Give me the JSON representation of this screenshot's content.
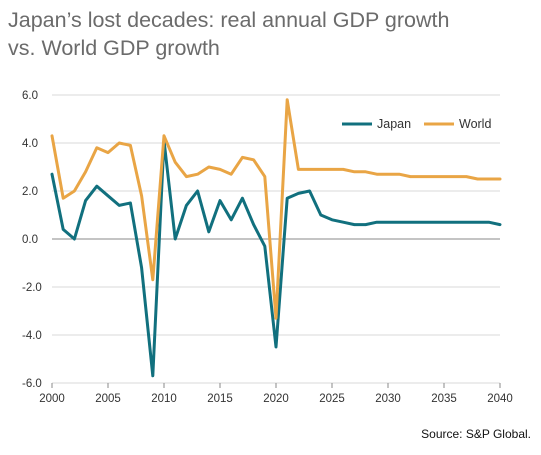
{
  "title_lines": [
    "Japan’s lost decades: real annual GDP growth",
    "vs. World GDP growth"
  ],
  "source": "Source: S&P Global.",
  "chart_data": {
    "type": "line",
    "title": "Japan’s lost decades: real annual GDP growth vs. World GDP growth",
    "xlabel": "",
    "ylabel": "",
    "xlim": [
      2000,
      2040
    ],
    "ylim": [
      -6,
      6
    ],
    "x_ticks": [
      2000,
      2005,
      2010,
      2015,
      2020,
      2025,
      2030,
      2035,
      2040
    ],
    "y_ticks": [
      "6.0",
      "4.0",
      "2.0",
      "0.0",
      "-2.0",
      "-4.0",
      "-6.0"
    ],
    "y_tick_values": [
      6,
      4,
      2,
      0,
      -2,
      -4,
      -6
    ],
    "grid": "horizontal",
    "legend_placement": "top-right",
    "x": [
      2000,
      2001,
      2002,
      2003,
      2004,
      2005,
      2006,
      2007,
      2008,
      2009,
      2010,
      2011,
      2012,
      2013,
      2014,
      2015,
      2016,
      2017,
      2018,
      2019,
      2020,
      2021,
      2022,
      2023,
      2024,
      2025,
      2026,
      2027,
      2028,
      2029,
      2030,
      2031,
      2032,
      2033,
      2034,
      2035,
      2036,
      2037,
      2038,
      2039,
      2040
    ],
    "series": [
      {
        "name": "Japan",
        "color": "#11707e",
        "values": [
          2.7,
          0.4,
          0.0,
          1.6,
          2.2,
          1.8,
          1.4,
          1.5,
          -1.2,
          -5.7,
          4.1,
          0.0,
          1.4,
          2.0,
          0.3,
          1.6,
          0.8,
          1.7,
          0.6,
          -0.3,
          -4.5,
          1.7,
          1.9,
          2.0,
          1.0,
          0.8,
          0.7,
          0.6,
          0.6,
          0.7,
          0.7,
          0.7,
          0.7,
          0.7,
          0.7,
          0.7,
          0.7,
          0.7,
          0.7,
          0.7,
          0.6
        ]
      },
      {
        "name": "World",
        "color": "#e9a545",
        "values": [
          4.3,
          1.7,
          2.0,
          2.8,
          3.8,
          3.6,
          4.0,
          3.9,
          1.8,
          -1.7,
          4.3,
          3.2,
          2.6,
          2.7,
          3.0,
          2.9,
          2.7,
          3.4,
          3.3,
          2.6,
          -3.3,
          5.8,
          2.9,
          2.9,
          2.9,
          2.9,
          2.9,
          2.8,
          2.8,
          2.7,
          2.7,
          2.7,
          2.6,
          2.6,
          2.6,
          2.6,
          2.6,
          2.6,
          2.5,
          2.5,
          2.5
        ]
      }
    ]
  }
}
